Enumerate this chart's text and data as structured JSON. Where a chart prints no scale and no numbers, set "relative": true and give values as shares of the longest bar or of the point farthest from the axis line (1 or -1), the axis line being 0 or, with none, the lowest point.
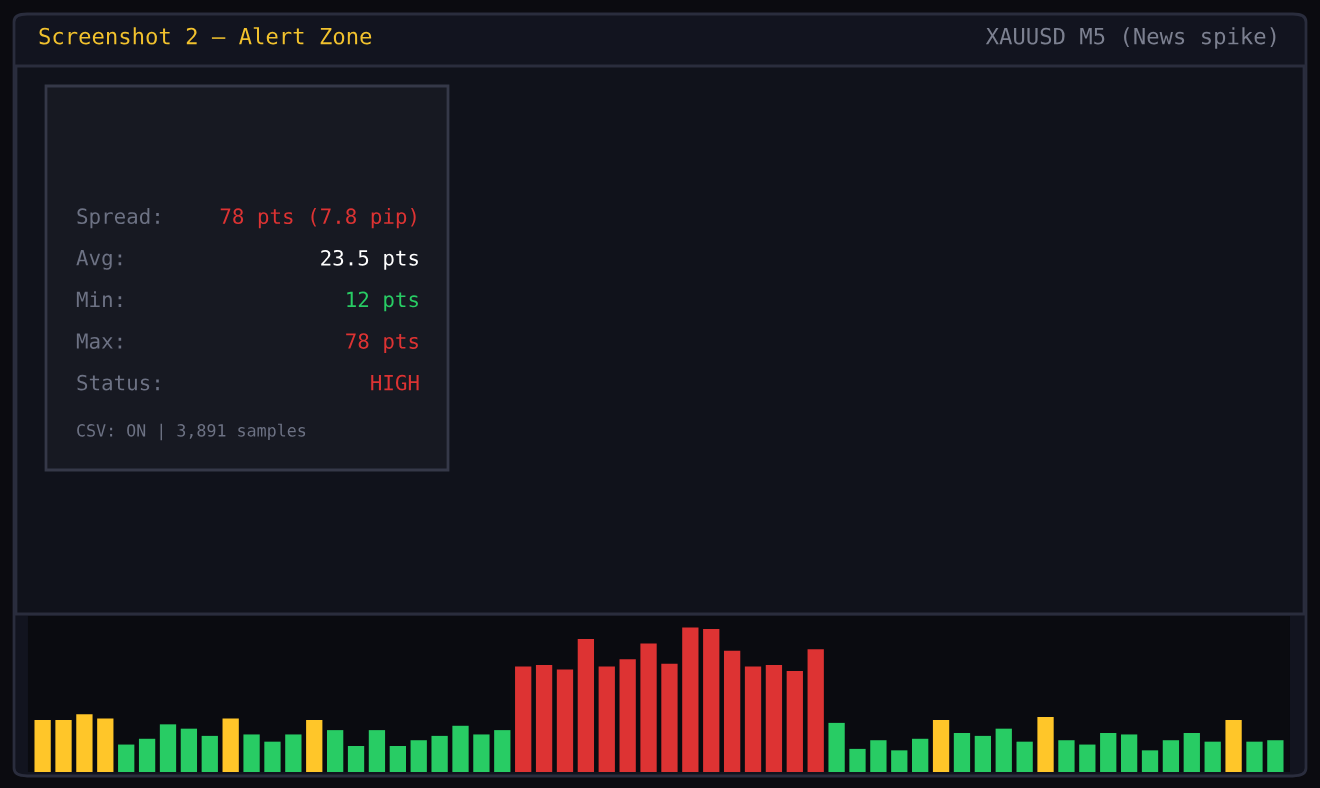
{
  "chart_data": {
    "type": "bar",
    "relative": true,
    "title": "Screenshot 2 — Alert Zone",
    "subtitle": "XAUUSD M5 (News spike)",
    "categories": [
      null,
      null,
      null,
      null,
      null,
      null,
      null,
      null,
      null,
      null,
      null,
      null,
      null,
      null,
      null,
      null,
      null,
      null,
      null,
      null,
      null,
      null,
      null,
      null,
      null,
      null,
      null,
      null,
      null,
      null,
      null,
      null,
      null,
      null,
      null,
      null,
      null,
      null,
      null,
      null,
      null,
      null,
      null,
      null,
      null,
      null,
      null,
      null,
      null,
      null,
      null,
      null,
      null,
      null,
      null,
      null,
      null,
      null,
      null,
      null
    ],
    "values": [
      0.36,
      0.36,
      0.4,
      0.37,
      0.19,
      0.23,
      0.33,
      0.3,
      0.25,
      0.37,
      0.26,
      0.21,
      0.26,
      0.36,
      0.29,
      0.18,
      0.29,
      0.18,
      0.22,
      0.25,
      0.32,
      0.26,
      0.29,
      0.73,
      0.74,
      0.71,
      0.92,
      0.73,
      0.78,
      0.89,
      0.75,
      1,
      0.99,
      0.84,
      0.73,
      0.74,
      0.7,
      0.85,
      0.34,
      0.16,
      0.22,
      0.15,
      0.23,
      0.36,
      0.27,
      0.25,
      0.3,
      0.21,
      0.38,
      0.22,
      0.19,
      0.27,
      0.26,
      0.15,
      0.22,
      0.27,
      0.21,
      0.36,
      0.21,
      0.22
    ],
    "colors": [
      "#ffc629",
      "#ffc629",
      "#ffc629",
      "#ffc629",
      "#28cc64",
      "#28cc64",
      "#28cc64",
      "#28cc64",
      "#28cc64",
      "#ffc629",
      "#28cc64",
      "#28cc64",
      "#28cc64",
      "#ffc629",
      "#28cc64",
      "#28cc64",
      "#28cc64",
      "#28cc64",
      "#28cc64",
      "#28cc64",
      "#28cc64",
      "#28cc64",
      "#28cc64",
      "#dd3333",
      "#dd3333",
      "#dd3333",
      "#dd3333",
      "#dd3333",
      "#dd3333",
      "#dd3333",
      "#dd3333",
      "#dd3333",
      "#dd3333",
      "#dd3333",
      "#dd3333",
      "#dd3333",
      "#dd3333",
      "#dd3333",
      "#28cc64",
      "#28cc64",
      "#28cc64",
      "#28cc64",
      "#28cc64",
      "#ffc629",
      "#28cc64",
      "#28cc64",
      "#28cc64",
      "#28cc64",
      "#ffc629",
      "#28cc64",
      "#28cc64",
      "#28cc64",
      "#28cc64",
      "#28cc64",
      "#28cc64",
      "#28cc64",
      "#28cc64",
      "#ffc629",
      "#28cc64",
      "#28cc64"
    ],
    "annotations": [
      "Spread:",
      "78 pts (7.8 pip)",
      "Avg:",
      "23.5 pts",
      "Min:",
      "12 pts",
      "Max:",
      "78 pts",
      "Status:",
      "HIGH",
      "CSV: ON | 3,891 samples"
    ]
  }
}
